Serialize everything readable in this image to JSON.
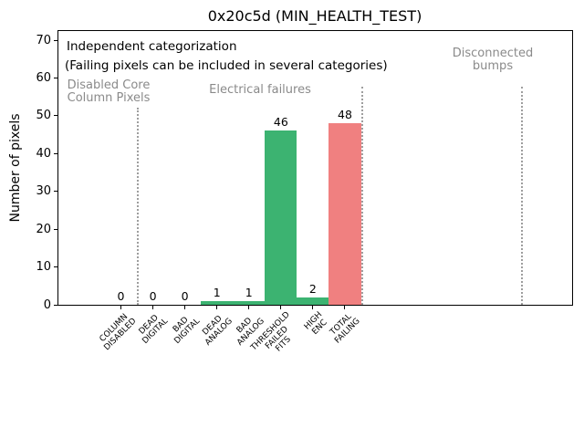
{
  "figure": {
    "background": "#ffffff"
  },
  "chart_data": {
    "type": "bar",
    "title": "0x20c5d (MIN_HEALTH_TEST)",
    "ylabel": "Number of pixels",
    "xlabel": "",
    "categories": [
      "COLUMN\nDISABLED",
      "DEAD\nDIGITAL",
      "BAD\nDIGITAL",
      "DEAD\nANALOG",
      "BAD\nANALOG",
      "THRESHOLD\nFAILED\nFITS",
      "HIGH\nENC",
      "TOTAL\nFAILING"
    ],
    "values": [
      0,
      0,
      0,
      1,
      1,
      46,
      2,
      48
    ],
    "bar_value_labels": [
      "0",
      "0",
      "0",
      "1",
      "1",
      "46",
      "2",
      "48"
    ],
    "bar_colors": [
      "#3cb371",
      "#3cb371",
      "#3cb371",
      "#3cb371",
      "#3cb371",
      "#3cb371",
      "#3cb371",
      "#f08080"
    ],
    "yticks": [
      0,
      10,
      20,
      30,
      40,
      50,
      60,
      70
    ],
    "ylim": [
      0,
      72.5
    ],
    "grid": false,
    "legend": null,
    "annotations": {
      "note_line1": "Independent categorization",
      "note_line2": "(Failing pixels can be included in several categories)",
      "section_labels": [
        "Disabled Core\nColumn Pixels",
        "Electrical failures",
        "Disconnected\nbumps"
      ],
      "section_divider_style": "dotted vertical lines"
    }
  },
  "colors": {
    "bar_green": "#3cb371",
    "bar_red": "#f08080",
    "annotation_gray": "#8a8a8a",
    "divider_gray": "#9e9e9e",
    "axis_black": "#000000"
  }
}
